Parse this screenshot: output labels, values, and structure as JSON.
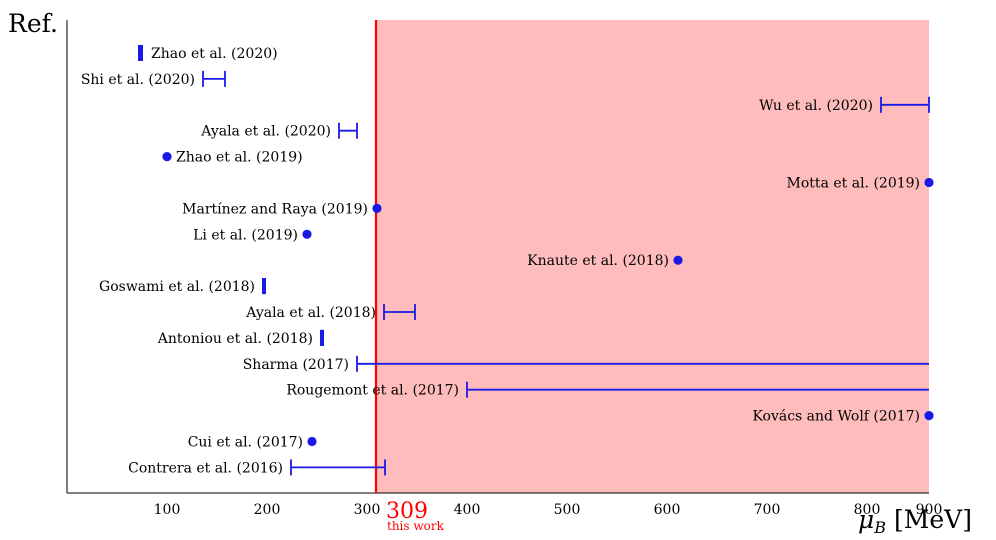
{
  "chart_data": {
    "type": "scatter",
    "ylabel": "Ref.",
    "xlabel": "μB [MeV]",
    "xlabel_main": "μ",
    "xlabel_sub": "B",
    "xlabel_unit": "[MeV]",
    "xlim": [
      0,
      1000
    ],
    "xticks": [
      100,
      200,
      300,
      400,
      500,
      600,
      700,
      800,
      900
    ],
    "colors": {
      "series": "#1a1ae6",
      "this_work": "#ff0000",
      "shade": "#ffbcbc"
    },
    "this_work": {
      "value": 309,
      "value_label": "309",
      "label": "this work"
    },
    "entries": [
      {
        "ref": "Zhao et al. (2020)",
        "kind": "range",
        "low": 72,
        "high": 75,
        "label_side": "right"
      },
      {
        "ref": "Shi et al. (2020)",
        "kind": "range",
        "low": 136,
        "high": 158,
        "label_side": "left"
      },
      {
        "ref": "Wu et al. (2020)",
        "kind": "range",
        "low": 814,
        "high": 975,
        "label_side": "left"
      },
      {
        "ref": "Ayala et al. (2020)",
        "kind": "range",
        "low": 272,
        "high": 290,
        "label_side": "left"
      },
      {
        "ref": "Zhao et al. (2019)",
        "kind": "point",
        "value": 100,
        "label_side": "right"
      },
      {
        "ref": "Motta et al. (2019)",
        "kind": "point",
        "value": 862,
        "label_side": "left"
      },
      {
        "ref": "Martínez and Raya (2019)",
        "kind": "point",
        "value": 310,
        "label_side": "left"
      },
      {
        "ref": "Li et al. (2019)",
        "kind": "point",
        "value": 240,
        "label_side": "left"
      },
      {
        "ref": "Knaute et al. (2018)",
        "kind": "point",
        "value": 611,
        "label_side": "left"
      },
      {
        "ref": "Goswami et al. (2018)",
        "kind": "range",
        "low": 196,
        "high": 198,
        "label_side": "left"
      },
      {
        "ref": "Ayala et al. (2018)",
        "kind": "range",
        "low": 317,
        "high": 348,
        "label_side": "left"
      },
      {
        "ref": "Antoniou et al. (2018)",
        "kind": "range",
        "low": 254,
        "high": 256,
        "label_side": "left"
      },
      {
        "ref": "Sharma (2017)",
        "kind": "range",
        "low": 290,
        "high": 1000,
        "label_side": "left"
      },
      {
        "ref": "Rougemont et al. (2017)",
        "kind": "range",
        "low": 400,
        "high": 1000,
        "label_side": "left"
      },
      {
        "ref": "Kovács and Wolf (2017)",
        "kind": "point",
        "value": 884,
        "label_side": "left"
      },
      {
        "ref": "Cui et al. (2017)",
        "kind": "point",
        "value": 245,
        "label_side": "left"
      },
      {
        "ref": "Contrera et al. (2016)",
        "kind": "range",
        "low": 224,
        "high": 318,
        "label_side": "left"
      }
    ]
  }
}
